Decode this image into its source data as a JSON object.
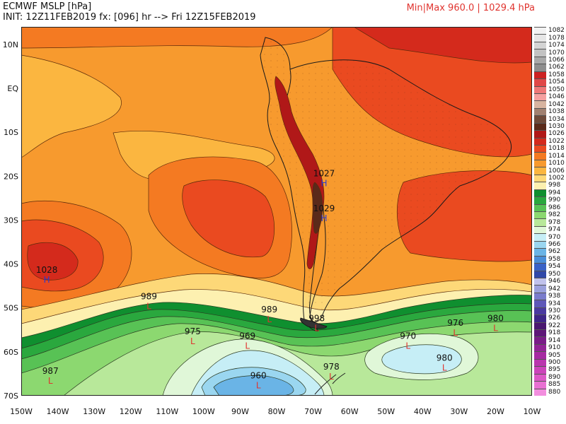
{
  "header": {
    "title": "ECMWF MSLP [hPa]",
    "init": "INIT: 12Z11FEB2019 fx: [096] hr --> Fri 12Z15FEB2019",
    "minmax": "Min|Max 960.0 | 1029.4 hPa"
  },
  "axes": {
    "lon_labels": [
      "150W",
      "140W",
      "130W",
      "120W",
      "110W",
      "100W",
      "90W",
      "80W",
      "70W",
      "60W",
      "50W",
      "40W",
      "30W",
      "20W",
      "10W"
    ],
    "lat_labels": [
      "10N",
      "EQ",
      "10S",
      "20S",
      "30S",
      "40S",
      "50S",
      "60S",
      "70S"
    ]
  },
  "extent": {
    "lon": [
      -150,
      -10
    ],
    "lat": [
      -70,
      14
    ]
  },
  "highs": [
    {
      "value": "1028",
      "symbol": "H",
      "lon": -143,
      "lat": -43
    },
    {
      "value": "1027",
      "symbol": "H",
      "lon": -67,
      "lat": -21
    },
    {
      "value": "1029",
      "symbol": "H",
      "lon": -67,
      "lat": -29
    }
  ],
  "lows": [
    {
      "value": "989",
      "symbol": "L",
      "lon": -115,
      "lat": -49
    },
    {
      "value": "989",
      "symbol": "L",
      "lon": -82,
      "lat": -52
    },
    {
      "value": "998",
      "symbol": "L",
      "lon": -69,
      "lat": -54
    },
    {
      "value": "976",
      "symbol": "L",
      "lon": -31,
      "lat": -55
    },
    {
      "value": "980",
      "symbol": "L",
      "lon": -20,
      "lat": -54
    },
    {
      "value": "975",
      "symbol": "L",
      "lon": -103,
      "lat": -57
    },
    {
      "value": "969",
      "symbol": "L",
      "lon": -88,
      "lat": -58
    },
    {
      "value": "970",
      "symbol": "L",
      "lon": -44,
      "lat": -58
    },
    {
      "value": "980",
      "symbol": "L",
      "lon": -34,
      "lat": -63
    },
    {
      "value": "987",
      "symbol": "L",
      "lon": -142,
      "lat": -66
    },
    {
      "value": "960",
      "symbol": "L",
      "lon": -85,
      "lat": -67
    },
    {
      "value": "978",
      "symbol": "L",
      "lon": -65,
      "lat": -65
    }
  ],
  "legend": {
    "labels": [
      "1082",
      "1078",
      "1074",
      "1070",
      "1066",
      "1062",
      "1058",
      "1054",
      "1050",
      "1046",
      "1042",
      "1038",
      "1034",
      "1030",
      "1026",
      "1022",
      "1018",
      "1014",
      "1010",
      "1006",
      "1002",
      "998",
      "994",
      "990",
      "986",
      "982",
      "978",
      "974",
      "970",
      "966",
      "962",
      "958",
      "954",
      "950",
      "946",
      "942",
      "938",
      "934",
      "930",
      "926",
      "922",
      "918",
      "914",
      "910",
      "905",
      "900",
      "895",
      "890",
      "885",
      "880"
    ],
    "colors": [
      "#f2f2f2",
      "#e6e6e6",
      "#d4d4d4",
      "#c2c2c2",
      "#a8a8a8",
      "#8e8e8e",
      "#cc2222",
      "#e04848",
      "#ef7878",
      "#f5a0a0",
      "#d8b4a0",
      "#a08070",
      "#6e4a3a",
      "#5a2a1a",
      "#b01818",
      "#d42a1c",
      "#ea4a20",
      "#f47a22",
      "#f79a2e",
      "#fbb640",
      "#fdd878",
      "#fdf0b0",
      "#0f8f2f",
      "#2aa83e",
      "#58c255",
      "#8cd870",
      "#b8e89a",
      "#e0f7d8",
      "#c6eef6",
      "#9ad6f0",
      "#6ab4e6",
      "#4a8ed8",
      "#3a62c6",
      "#3048a8",
      "#c0c2ec",
      "#9aa0dc",
      "#7a7ccc",
      "#5e58b8",
      "#4a3aa0",
      "#3e2688",
      "#4a1870",
      "#5e1678",
      "#7a1c88",
      "#922496",
      "#a62aa2",
      "#ba36ae",
      "#cc44ba",
      "#dc58c6",
      "#e870d2",
      "#f28ede"
    ]
  }
}
